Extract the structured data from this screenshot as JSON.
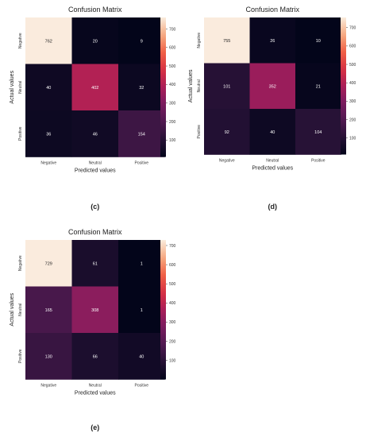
{
  "chart_data": [
    {
      "type": "heatmap",
      "panel": "(c)",
      "title": "Confusion Matrix",
      "xlabel": "Predicted values",
      "ylabel": "Actual values",
      "x_categories": [
        "Negative",
        "Neutral",
        "Positive"
      ],
      "y_categories": [
        "Negative",
        "Neutral",
        "Positive"
      ],
      "values": [
        [
          762,
          20,
          9
        ],
        [
          40,
          402,
          32
        ],
        [
          36,
          46,
          154
        ]
      ],
      "colorbar": {
        "min": 9,
        "max": 762,
        "ticks": [
          100,
          200,
          300,
          400,
          500,
          600,
          700
        ]
      },
      "colormap": "rocket"
    },
    {
      "type": "heatmap",
      "panel": "(d)",
      "title": "Confusion Matrix",
      "xlabel": "Predicted values",
      "ylabel": "Actual values",
      "x_categories": [
        "Negative",
        "Neutral",
        "Positive"
      ],
      "y_categories": [
        "Negative",
        "Neutral",
        "Positive"
      ],
      "values": [
        [
          755,
          26,
          10
        ],
        [
          101,
          352,
          21
        ],
        [
          92,
          40,
          104
        ]
      ],
      "colorbar": {
        "min": 10,
        "max": 755,
        "ticks": [
          100,
          200,
          300,
          400,
          500,
          600,
          700
        ]
      },
      "colormap": "rocket"
    },
    {
      "type": "heatmap",
      "panel": "(e)",
      "title": "Confusion Matrix",
      "xlabel": "Predicted values",
      "ylabel": "Actual values",
      "x_categories": [
        "Negative",
        "Neutral",
        "Positive"
      ],
      "y_categories": [
        "Negative",
        "Neutral",
        "Positive"
      ],
      "values": [
        [
          729,
          61,
          1
        ],
        [
          165,
          308,
          1
        ],
        [
          130,
          66,
          40
        ]
      ],
      "colorbar": {
        "min": 1,
        "max": 729,
        "ticks": [
          100,
          200,
          300,
          400,
          500,
          600,
          700
        ]
      },
      "colormap": "rocket"
    }
  ]
}
